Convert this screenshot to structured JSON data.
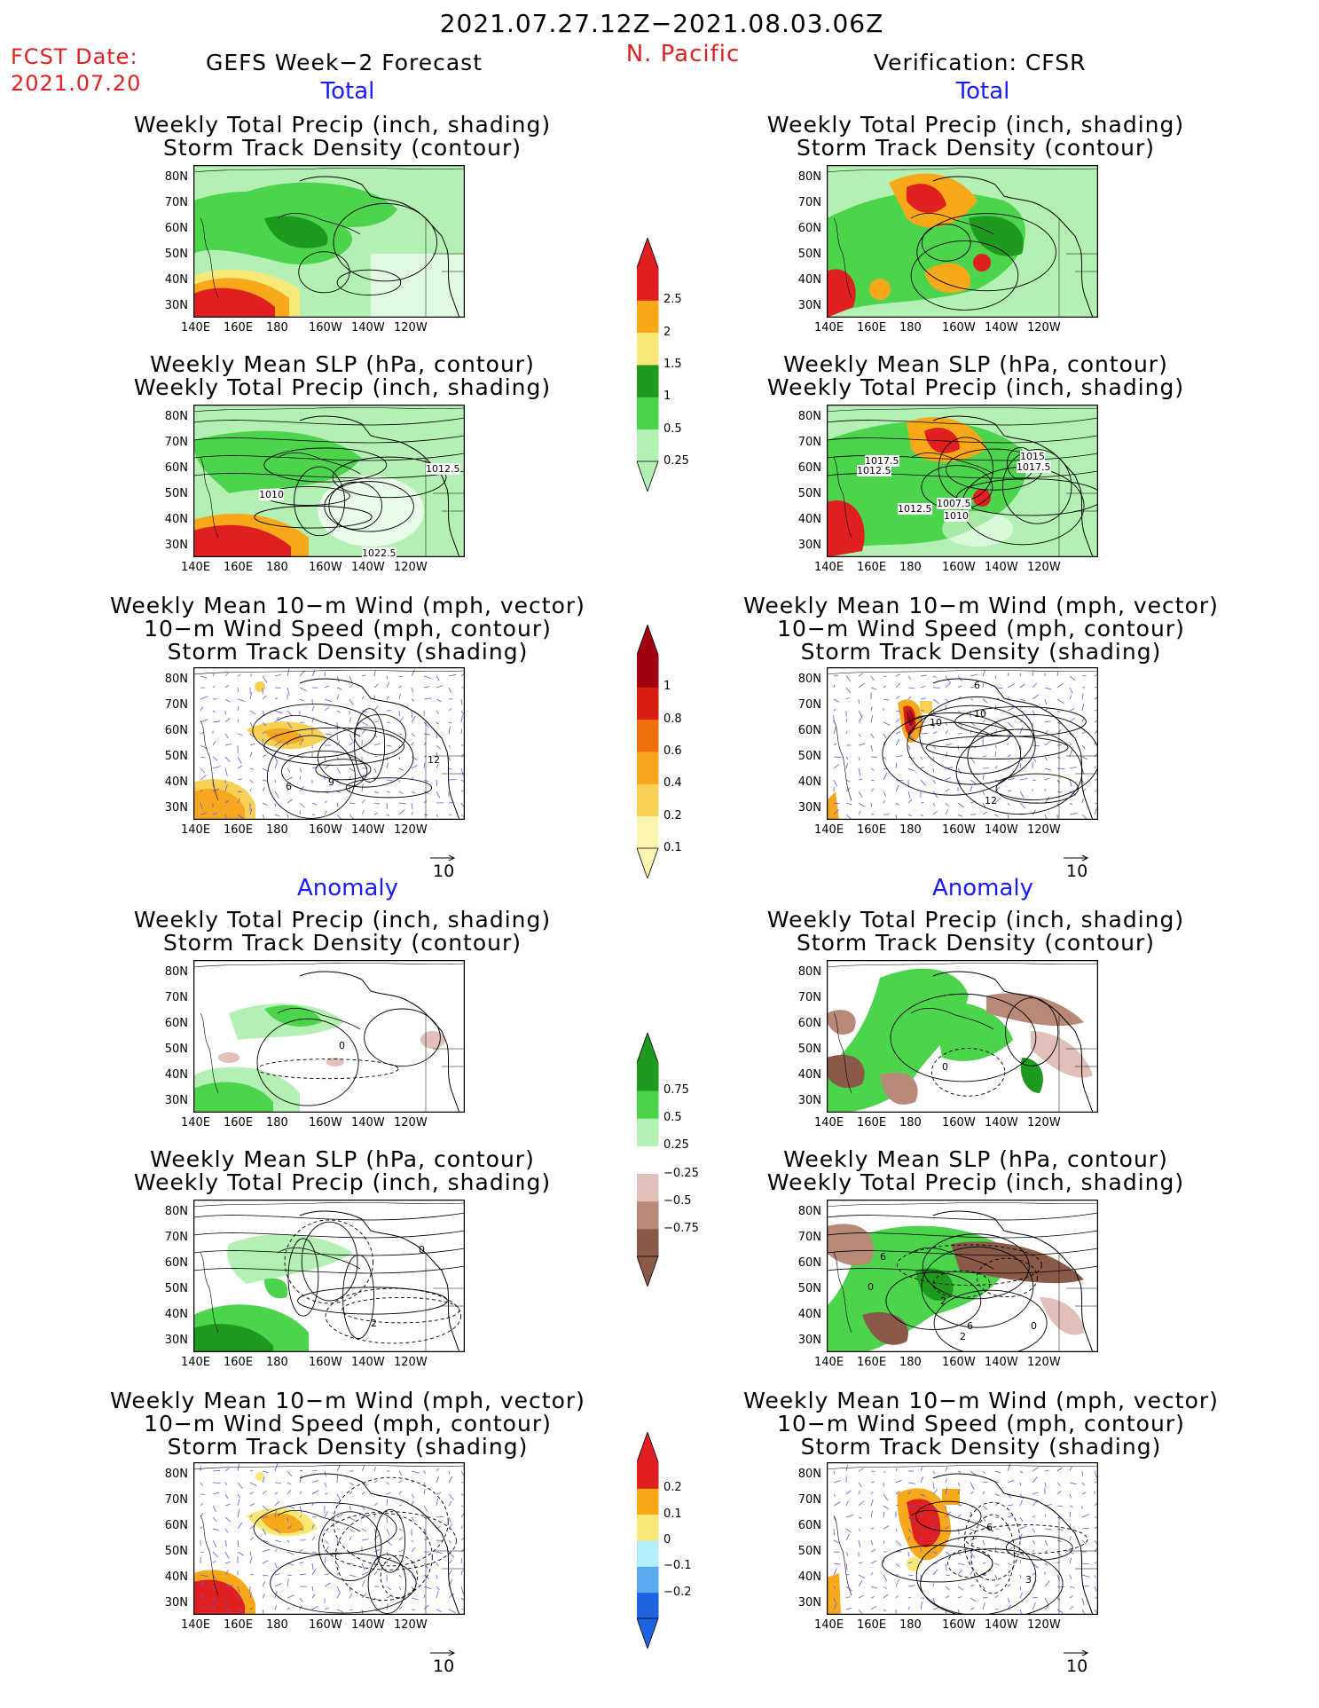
{
  "header": {
    "date_range": "2021.07.27.12Z−2021.08.03.06Z",
    "fcst_label": "FCST Date:",
    "fcst_date": "2021.07.20",
    "left_title": "GEFS Week−2 Forecast",
    "region": "N. Pacific",
    "right_title": "Verification: CFSR"
  },
  "sections": {
    "total": "Total",
    "anomaly": "Anomaly"
  },
  "panel_titles": {
    "precip_track": [
      "Weekly Total Precip (inch, shading)",
      "Storm Track Density (contour)"
    ],
    "slp_precip": [
      "Weekly Mean SLP (hPa, contour)",
      "Weekly Total Precip (inch, shading)"
    ],
    "wind_track": [
      "Weekly Mean 10−m Wind (mph, vector)",
      "10−m Wind Speed (mph, contour)",
      "Storm Track Density (shading)"
    ]
  },
  "axes": {
    "lat_labels": [
      "80N",
      "70N",
      "60N",
      "50N",
      "40N",
      "30N"
    ],
    "lon_labels": [
      "140E",
      "160E",
      "180",
      "160W",
      "140W",
      "120W"
    ]
  },
  "vector_scale": "10",
  "contour_labels": {
    "fcst_slp": [
      "1010",
      "1012.5",
      "1022.5"
    ],
    "cfsr_slp": [
      "1017.5",
      "1012.5",
      "1012.5",
      "1007.5",
      "1010",
      "1015",
      "1017.5"
    ],
    "fcst_wind": [
      "6",
      "9",
      "12"
    ],
    "cfsr_wind": [
      "6",
      "10",
      "10",
      "12"
    ],
    "fcst_anom_track": [
      "0"
    ],
    "cfsr_anom_track": [
      "0"
    ],
    "fcst_anom_slp": [
      "2",
      "0"
    ],
    "cfsr_anom_slp": [
      "0",
      "6",
      "2",
      "2",
      "6",
      "0"
    ],
    "cfsr_anom_wind": [
      "6",
      "3"
    ]
  },
  "colorbars": {
    "precip_total": {
      "colors": [
        "#b4f0b4",
        "#4cd44c",
        "#1e9a1e",
        "#f8e878",
        "#f8a818",
        "#e02020"
      ],
      "labels": [
        "0.25",
        "0.5",
        "1",
        "1.5",
        "2",
        "2.5"
      ]
    },
    "track_total": {
      "colors": [
        "#fcf5b0",
        "#f8d054",
        "#f8a820",
        "#f07010",
        "#d82010",
        "#a00010"
      ],
      "labels": [
        "0.1",
        "0.2",
        "0.4",
        "0.6",
        "0.8",
        "1"
      ]
    },
    "precip_anom": {
      "colors": [
        "#8a5a48",
        "#b88878",
        "#e0c0b8",
        "#ffffff",
        "#b4f0b4",
        "#4cd44c",
        "#1e9a1e"
      ],
      "labels": [
        "−0.75",
        "−0.5",
        "−0.25",
        "0.25",
        "0.5",
        "0.75"
      ]
    },
    "track_anom": {
      "colors": [
        "#1e64e0",
        "#5aa8f0",
        "#b4eefa",
        "#f8e878",
        "#f8a818",
        "#e02020"
      ],
      "labels": [
        "−0.2",
        "−0.1",
        "0",
        "0.1",
        "0.2"
      ]
    }
  }
}
